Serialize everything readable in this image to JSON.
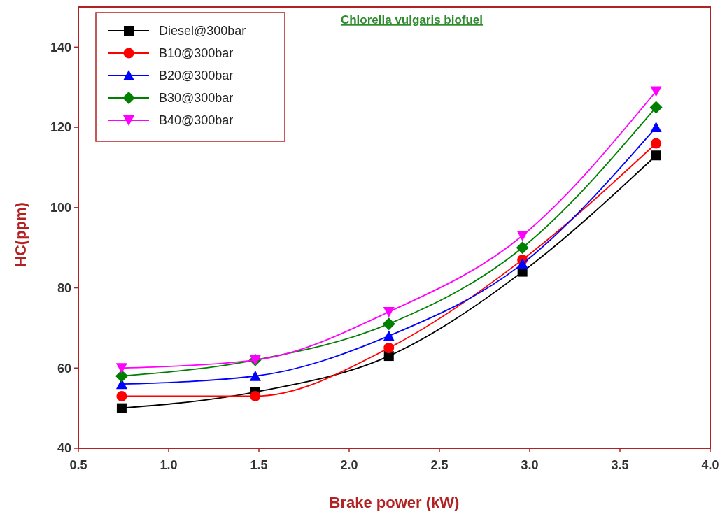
{
  "chart_data": {
    "type": "line",
    "title": "Chlorella vulgaris biofuel",
    "xlabel": "Brake power (kW)",
    "ylabel": "HC(ppm)",
    "x": [
      0.74,
      1.48,
      2.22,
      2.96,
      3.7
    ],
    "series": [
      {
        "name": "Diesel@300bar",
        "color": "#000000",
        "marker": "square",
        "values": [
          50,
          54,
          63,
          84,
          113
        ]
      },
      {
        "name": "B10@300bar",
        "color": "#ff0000",
        "marker": "circle",
        "values": [
          53,
          53,
          65,
          87,
          116
        ]
      },
      {
        "name": "B20@300bar",
        "color": "#0000ff",
        "marker": "triangle",
        "values": [
          56,
          58,
          68,
          86,
          120
        ]
      },
      {
        "name": "B30@300bar",
        "color": "#008000",
        "marker": "diamond",
        "values": [
          58,
          62,
          71,
          90,
          125
        ]
      },
      {
        "name": "B40@300bar",
        "color": "#ff00ff",
        "marker": "triangle-down",
        "values": [
          60,
          62,
          74,
          93,
          129
        ]
      }
    ],
    "xlim": [
      0.5,
      4.0
    ],
    "xticks": [
      {
        "value": 0.5,
        "label": "0.5"
      },
      {
        "value": 1,
        "label": "1.0"
      },
      {
        "value": 1.5,
        "label": "1.5"
      },
      {
        "value": 2,
        "label": "2.0"
      },
      {
        "value": 2.5,
        "label": "2.5"
      },
      {
        "value": 3,
        "label": "3.0"
      },
      {
        "value": 3.5,
        "label": "3.5"
      },
      {
        "value": 4,
        "label": "4.0"
      }
    ],
    "ylim": [
      40,
      150
    ],
    "yticks": [
      40,
      60,
      80,
      100,
      120,
      140
    ],
    "grid": false,
    "legend": "top left",
    "line_style": "solid"
  }
}
